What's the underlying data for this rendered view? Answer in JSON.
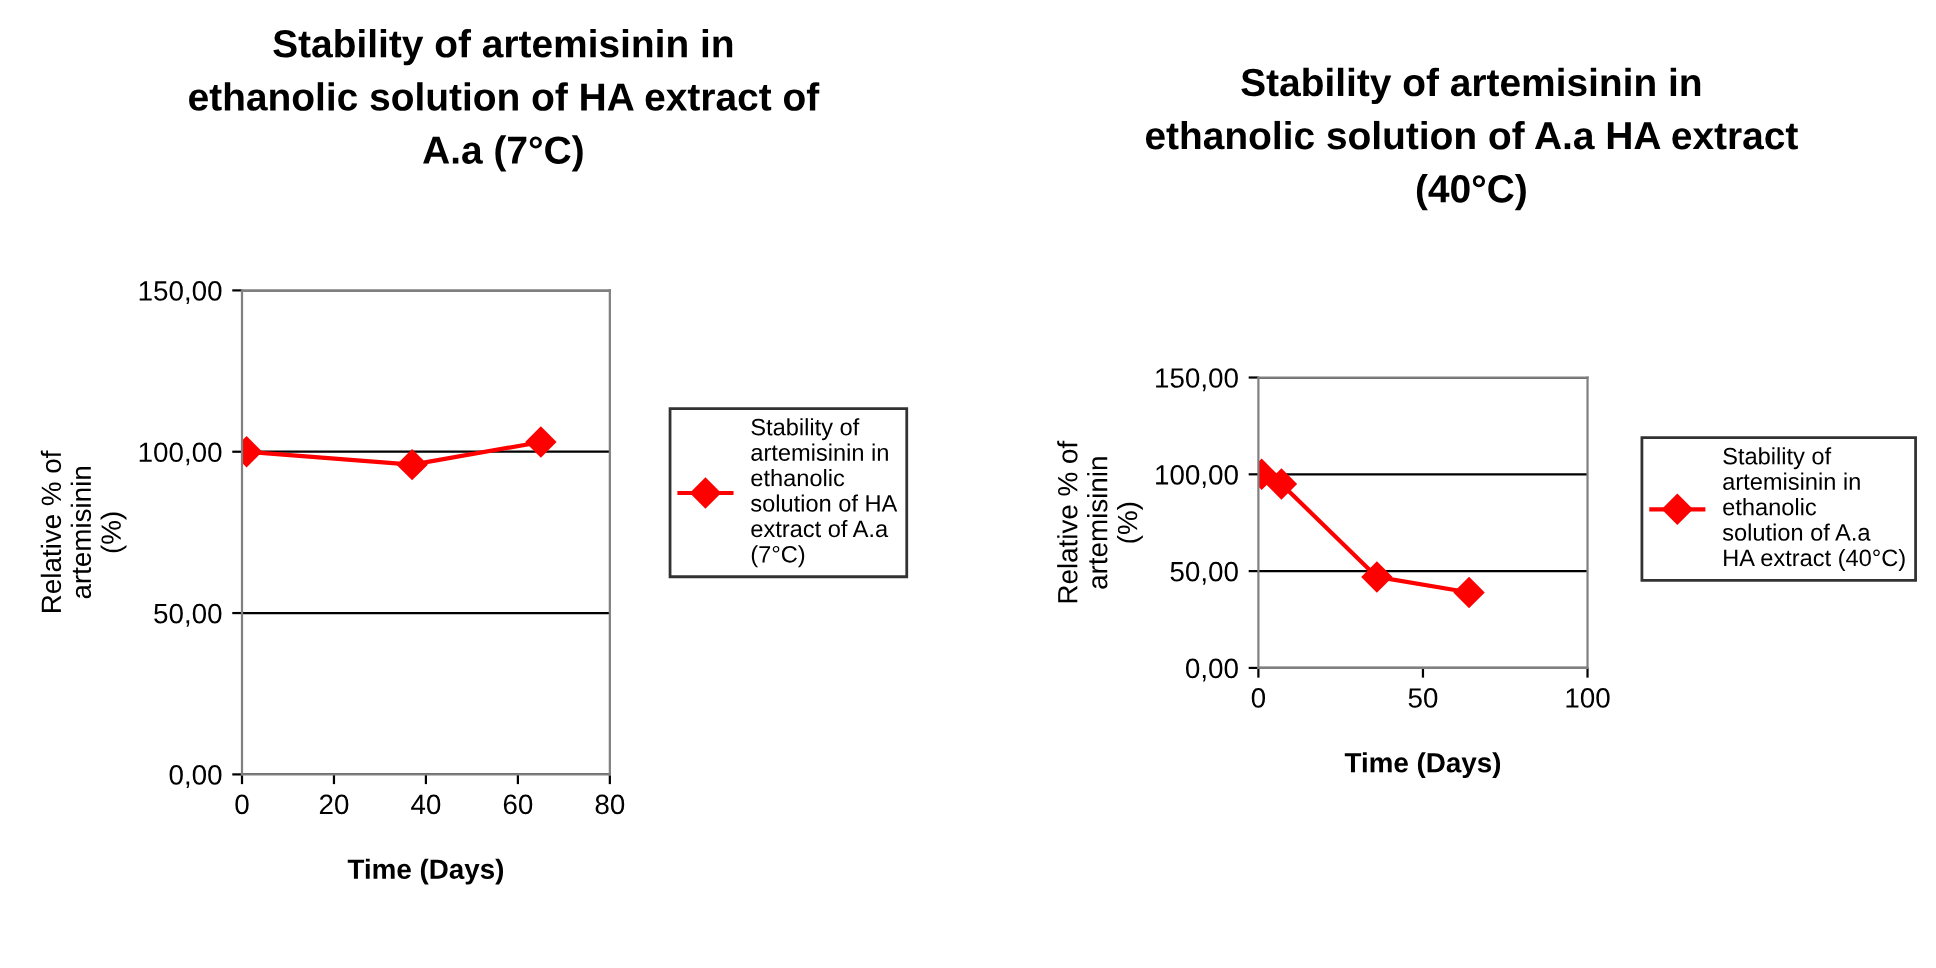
{
  "chart_data": [
    {
      "type": "line",
      "title": "Stability of artemisinin in ethanolic solution of HA extract of A.a (7°C)",
      "xlabel": "Time (Days)",
      "ylabel": "Relative % of artemisinin (%)",
      "xlim": [
        0,
        80
      ],
      "xticks": [
        0,
        20,
        40,
        60,
        80
      ],
      "ylim": [
        0,
        150
      ],
      "yticks": [
        {
          "value": 0,
          "label": "0,00"
        },
        {
          "value": 50,
          "label": "50,00"
        },
        {
          "value": 100,
          "label": "100,00"
        },
        {
          "value": 150,
          "label": "150,00"
        }
      ],
      "grid": "y",
      "legend": "right",
      "marker": "diamond",
      "series": [
        {
          "name": "Stability of artemisinin in ethanolic solution of HA extract of A.a (7°C)",
          "color": "#ff0000",
          "x": [
            1,
            37,
            65
          ],
          "values": [
            100,
            96,
            103
          ]
        }
      ]
    },
    {
      "type": "line",
      "title": "Stability of artemisinin in ethanolic solution of A.a HA extract (40°C)",
      "xlabel": "Time (Days)",
      "ylabel": "Relative % of artemisinin (%)",
      "xlim": [
        0,
        100
      ],
      "xticks": [
        0,
        50,
        100
      ],
      "ylim": [
        0,
        150
      ],
      "yticks": [
        {
          "value": 0,
          "label": "0,00"
        },
        {
          "value": 50,
          "label": "50,00"
        },
        {
          "value": 100,
          "label": "100,00"
        },
        {
          "value": 150,
          "label": "150,00"
        }
      ],
      "grid": "y",
      "legend": "right",
      "marker": "diamond",
      "series": [
        {
          "name": "Stability of artemisinin in ethanolic solution of A.a HA extract (40°C)",
          "color": "#ff0000",
          "x": [
            1,
            7,
            36,
            64
          ],
          "values": [
            100,
            95,
            47,
            39
          ]
        }
      ]
    }
  ]
}
